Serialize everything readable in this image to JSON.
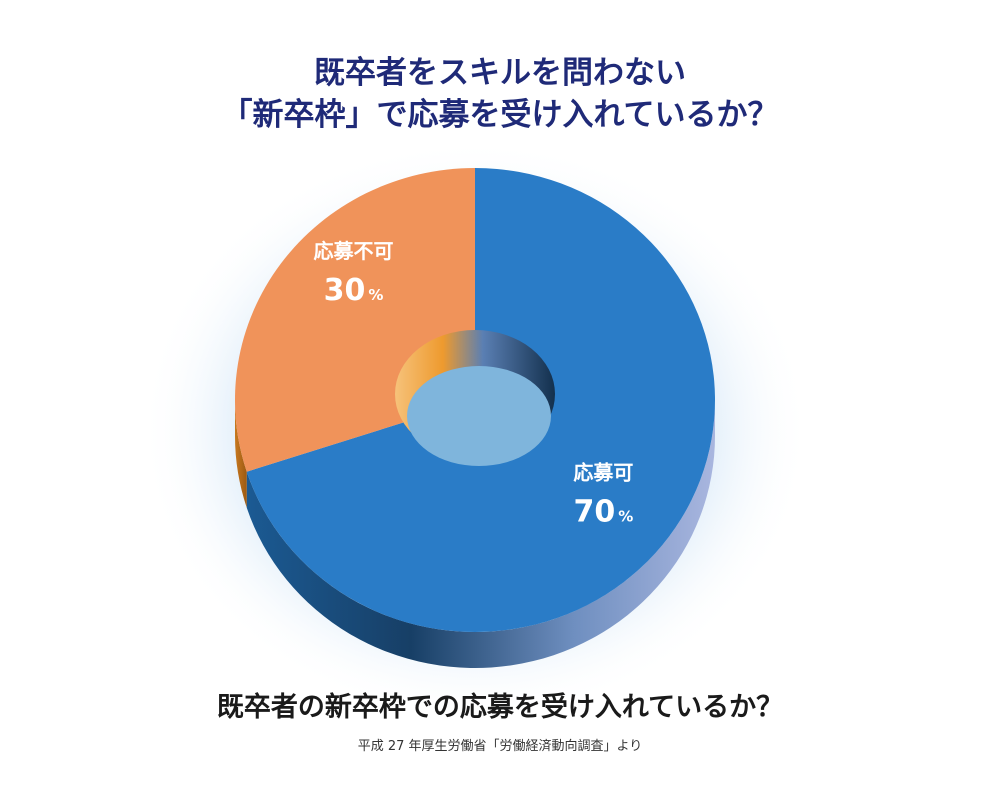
{
  "title": {
    "line1": "既卒者をスキルを問わない",
    "line2": "「新卒枠」で応募を受け入れているか？"
  },
  "caption": "既卒者の新卒枠での応募を受け入れているか？",
  "source": "平成 27 年厚生労働省「労働経済動向調査」より",
  "chart_data": {
    "type": "pie",
    "style": "3d-donut",
    "title": "既卒者をスキルを問わない「新卒枠」で応募を受け入れているか？",
    "slices": [
      {
        "label": "応募可",
        "value": 70,
        "unit": "%",
        "color": "#2a7cc7",
        "side_color": "#1c4f86"
      },
      {
        "label": "応募不可",
        "value": 30,
        "unit": "%",
        "color": "#f0935a",
        "side_color": "#b86a1c"
      }
    ],
    "hole_color": "#7fb5dc",
    "glow_color": "#cfe3f6"
  }
}
